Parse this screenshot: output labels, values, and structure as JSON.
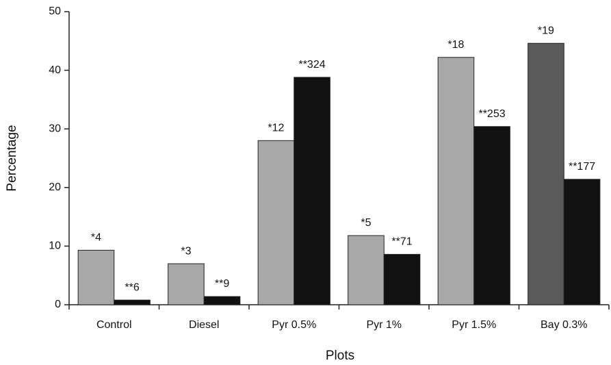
{
  "chart_data": {
    "type": "bar",
    "x_label": "Plots",
    "y_label": "Percentage",
    "categories": [
      "Control",
      "Diesel",
      "Pyr 0.5%",
      "Pyr 1%",
      "Pyr 1.5%",
      "Bay 0.3%"
    ],
    "series": [
      {
        "colors": [
          "#a8a8a8",
          "#a8a8a8",
          "#a8a8a8",
          "#a8a8a8",
          "#a8a8a8",
          "#5a5a5a"
        ],
        "values": [
          9.3,
          7.0,
          28.0,
          11.8,
          42.2,
          44.6
        ],
        "annotations": [
          "*4",
          "*3",
          "*12",
          "*5",
          "*18",
          "*19"
        ]
      },
      {
        "color": "#111111",
        "values": [
          0.8,
          1.4,
          38.8,
          8.6,
          30.4,
          21.4
        ],
        "annotations": [
          "**6",
          "**9",
          "**324",
          "**71",
          "**253",
          "**177"
        ]
      }
    ],
    "ylim": [
      0,
      50
    ],
    "yticks": [
      0,
      10,
      20,
      30,
      40,
      50
    ]
  }
}
